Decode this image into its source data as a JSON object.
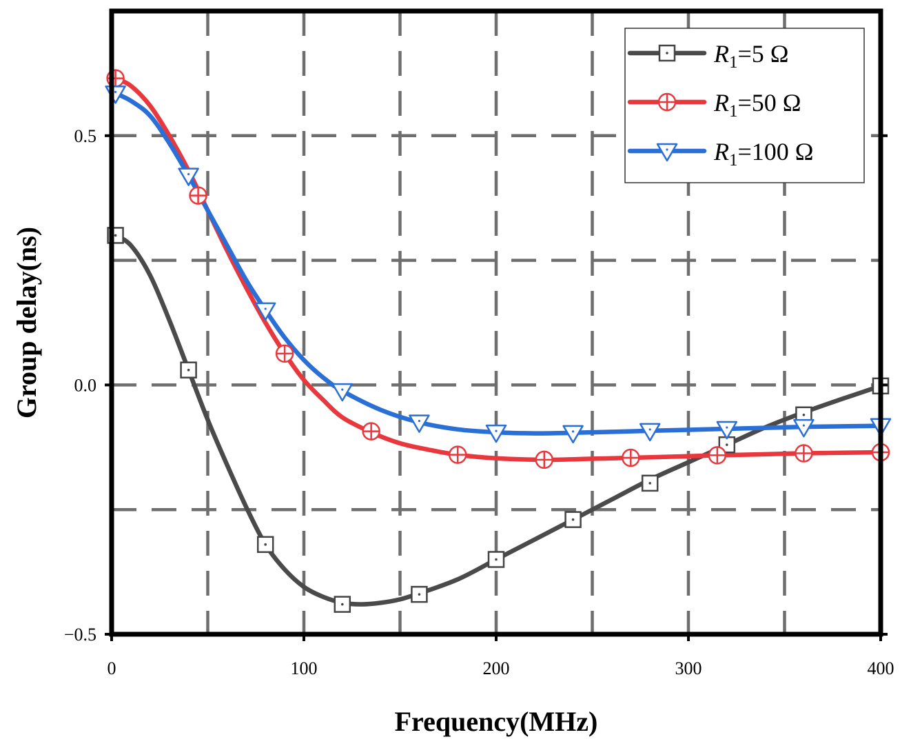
{
  "chart_data": {
    "type": "line",
    "title": "",
    "xlabel": "Frequency(MHz)",
    "ylabel": "Group delay(ns)",
    "xlim": [
      0,
      400
    ],
    "ylim": [
      -0.5,
      0.75
    ],
    "xticks": [
      0,
      100,
      200,
      300,
      400
    ],
    "xtick_labels": [
      "0",
      "100",
      "200",
      "300",
      "400"
    ],
    "yticks": [
      -0.5,
      0.0,
      0.5
    ],
    "ytick_labels": [
      "−0.5",
      "0.0",
      "0.5"
    ],
    "grid": true,
    "grid_x": [
      50,
      100,
      150,
      200,
      250,
      300,
      350
    ],
    "grid_y": [
      -0.25,
      0.0,
      0.25,
      0.5
    ],
    "legend_position": "top-right",
    "series": [
      {
        "name": "R1=5 Ω",
        "legend_prefix": "R",
        "legend_sub": "1",
        "legend_suffix": "=5 Ω",
        "color": "#4a4a4a",
        "marker": "square",
        "curve": [
          [
            2,
            0.3
          ],
          [
            10,
            0.28
          ],
          [
            20,
            0.22
          ],
          [
            30,
            0.13
          ],
          [
            40,
            0.03
          ],
          [
            50,
            -0.07
          ],
          [
            60,
            -0.16
          ],
          [
            70,
            -0.245
          ],
          [
            80,
            -0.32
          ],
          [
            90,
            -0.37
          ],
          [
            100,
            -0.405
          ],
          [
            110,
            -0.425
          ],
          [
            120,
            -0.437
          ],
          [
            130,
            -0.44
          ],
          [
            140,
            -0.437
          ],
          [
            150,
            -0.43
          ],
          [
            160,
            -0.418
          ],
          [
            180,
            -0.39
          ],
          [
            200,
            -0.35
          ],
          [
            220,
            -0.31
          ],
          [
            240,
            -0.27
          ],
          [
            260,
            -0.23
          ],
          [
            280,
            -0.19
          ],
          [
            300,
            -0.155
          ],
          [
            320,
            -0.12
          ],
          [
            340,
            -0.085
          ],
          [
            360,
            -0.055
          ],
          [
            380,
            -0.028
          ],
          [
            400,
            -0.002
          ]
        ],
        "markers": [
          [
            2,
            0.3
          ],
          [
            40,
            0.03
          ],
          [
            80,
            -0.32
          ],
          [
            120,
            -0.44
          ],
          [
            160,
            -0.42
          ],
          [
            200,
            -0.35
          ],
          [
            240,
            -0.27
          ],
          [
            280,
            -0.197
          ],
          [
            320,
            -0.12
          ],
          [
            360,
            -0.06
          ],
          [
            400,
            -0.002
          ]
        ]
      },
      {
        "name": "R1=50 Ω",
        "legend_prefix": "R",
        "legend_sub": "1",
        "legend_suffix": "=50 Ω",
        "color": "#e8383d",
        "marker": "circle-plus",
        "curve": [
          [
            2,
            0.615
          ],
          [
            10,
            0.6
          ],
          [
            20,
            0.56
          ],
          [
            30,
            0.5
          ],
          [
            40,
            0.43
          ],
          [
            50,
            0.35
          ],
          [
            60,
            0.27
          ],
          [
            70,
            0.195
          ],
          [
            80,
            0.125
          ],
          [
            90,
            0.063
          ],
          [
            100,
            0.01
          ],
          [
            110,
            -0.03
          ],
          [
            120,
            -0.065
          ],
          [
            135,
            -0.095
          ],
          [
            150,
            -0.117
          ],
          [
            165,
            -0.13
          ],
          [
            180,
            -0.14
          ],
          [
            200,
            -0.147
          ],
          [
            225,
            -0.15
          ],
          [
            250,
            -0.148
          ],
          [
            270,
            -0.146
          ],
          [
            300,
            -0.143
          ],
          [
            315,
            -0.141
          ],
          [
            340,
            -0.139
          ],
          [
            360,
            -0.137
          ],
          [
            380,
            -0.136
          ],
          [
            400,
            -0.135
          ]
        ],
        "markers": [
          [
            2,
            0.615
          ],
          [
            45,
            0.38
          ],
          [
            90,
            0.063
          ],
          [
            135,
            -0.093
          ],
          [
            180,
            -0.14
          ],
          [
            225,
            -0.15
          ],
          [
            270,
            -0.146
          ],
          [
            315,
            -0.141
          ],
          [
            360,
            -0.137
          ],
          [
            400,
            -0.135
          ]
        ]
      },
      {
        "name": "R1=100 Ω",
        "legend_prefix": "R",
        "legend_sub": "1",
        "legend_suffix": "=100 Ω",
        "color": "#2a6fd6",
        "marker": "triangle-down",
        "curve": [
          [
            2,
            0.585
          ],
          [
            10,
            0.57
          ],
          [
            20,
            0.54
          ],
          [
            30,
            0.485
          ],
          [
            40,
            0.42
          ],
          [
            50,
            0.35
          ],
          [
            60,
            0.28
          ],
          [
            70,
            0.21
          ],
          [
            80,
            0.15
          ],
          [
            90,
            0.095
          ],
          [
            100,
            0.05
          ],
          [
            110,
            0.015
          ],
          [
            120,
            -0.012
          ],
          [
            140,
            -0.05
          ],
          [
            160,
            -0.075
          ],
          [
            180,
            -0.089
          ],
          [
            200,
            -0.095
          ],
          [
            220,
            -0.097
          ],
          [
            240,
            -0.096
          ],
          [
            260,
            -0.094
          ],
          [
            280,
            -0.092
          ],
          [
            300,
            -0.09
          ],
          [
            320,
            -0.088
          ],
          [
            340,
            -0.086
          ],
          [
            360,
            -0.084
          ],
          [
            380,
            -0.083
          ],
          [
            400,
            -0.082
          ]
        ],
        "markers": [
          [
            2,
            0.585
          ],
          [
            40,
            0.42
          ],
          [
            80,
            0.15
          ],
          [
            120,
            -0.012
          ],
          [
            160,
            -0.075
          ],
          [
            200,
            -0.095
          ],
          [
            240,
            -0.096
          ],
          [
            280,
            -0.092
          ],
          [
            320,
            -0.088
          ],
          [
            360,
            -0.084
          ],
          [
            400,
            -0.082
          ]
        ]
      }
    ]
  }
}
